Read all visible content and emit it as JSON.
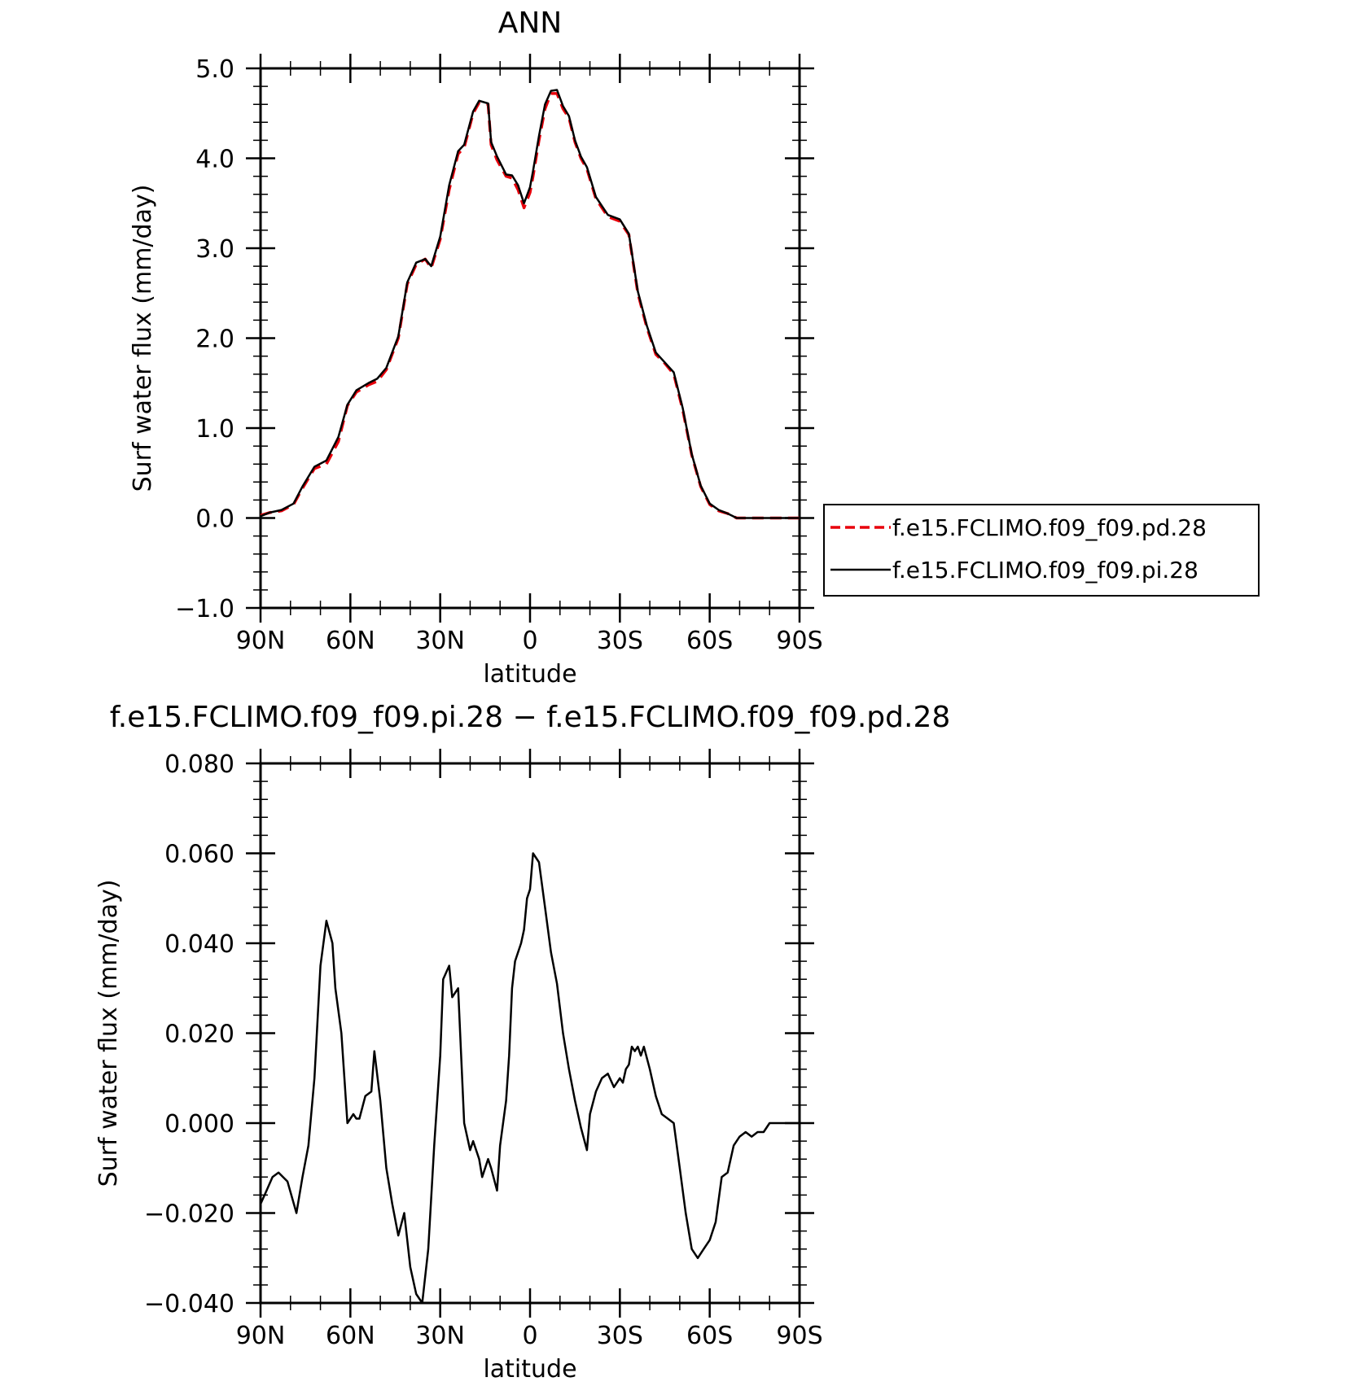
{
  "chart_data": [
    {
      "type": "line",
      "title": "ANN",
      "xlabel": "latitude",
      "ylabel": "Surf water flux (mm/day)",
      "xlim": [
        90,
        -90
      ],
      "ylim": [
        -1.0,
        5.0
      ],
      "xticks": [
        90,
        60,
        30,
        0,
        -30,
        -60,
        -90
      ],
      "xtick_labels": [
        "90N",
        "60N",
        "30N",
        "0",
        "30S",
        "60S",
        "90S"
      ],
      "yticks": [
        -1.0,
        0.0,
        1.0,
        2.0,
        3.0,
        4.0,
        5.0
      ],
      "ytick_labels": [
        "−1.0",
        "0.0",
        "1.0",
        "2.0",
        "3.0",
        "4.0",
        "5.0"
      ],
      "legend": {
        "placement": "right-outside"
      },
      "series": [
        {
          "name": "f.e15.FCLIMO.f09_f09.pd.28",
          "color": "#e8000b",
          "dash": "dashed",
          "x": [
            90,
            87,
            83,
            79,
            76,
            72,
            68,
            64,
            61,
            58,
            54,
            51,
            48,
            44,
            41,
            38,
            35,
            33,
            30,
            27,
            24,
            22,
            19,
            17,
            14,
            13,
            11,
            8,
            6,
            4,
            2,
            0,
            -1,
            -3,
            -5,
            -7,
            -9,
            -11,
            -13,
            -15,
            -17,
            -19,
            -22,
            -26,
            -30,
            -33,
            -36,
            -39,
            -42,
            -45,
            -48,
            -51,
            -54,
            -57,
            -60,
            -63,
            -66,
            -69,
            -71,
            -73,
            -76,
            -79,
            -83,
            -86,
            -90
          ],
          "values": [
            0.03,
            0.06,
            0.08,
            0.15,
            0.33,
            0.55,
            0.6,
            0.85,
            1.25,
            1.4,
            1.48,
            1.52,
            1.65,
            2.0,
            2.6,
            2.82,
            2.88,
            2.78,
            3.1,
            3.65,
            4.05,
            4.12,
            4.5,
            4.62,
            4.6,
            4.15,
            3.98,
            3.8,
            3.78,
            3.65,
            3.45,
            3.62,
            3.8,
            4.2,
            4.55,
            4.72,
            4.72,
            4.55,
            4.45,
            4.18,
            4.0,
            3.88,
            3.55,
            3.35,
            3.3,
            3.15,
            2.5,
            2.12,
            1.82,
            1.72,
            1.6,
            1.2,
            0.7,
            0.35,
            0.15,
            0.08,
            0.05,
            0.0,
            0.0,
            0.0,
            0.0,
            0.0,
            0.0,
            0.0,
            0.0
          ]
        },
        {
          "name": "f.e15.FCLIMO.f09_f09.pi.28",
          "color": "#000000",
          "dash": "solid",
          "x": [
            90,
            87,
            83,
            79,
            76,
            72,
            68,
            64,
            61,
            58,
            54,
            51,
            48,
            44,
            41,
            38,
            35,
            33,
            30,
            27,
            24,
            22,
            19,
            17,
            14,
            13,
            11,
            8,
            6,
            4,
            2,
            0,
            -1,
            -3,
            -5,
            -7,
            -9,
            -11,
            -13,
            -15,
            -17,
            -19,
            -22,
            -26,
            -30,
            -33,
            -36,
            -39,
            -42,
            -45,
            -48,
            -51,
            -54,
            -57,
            -60,
            -63,
            -66,
            -69,
            -71,
            -73,
            -76,
            -79,
            -83,
            -86,
            -90
          ],
          "values": [
            0.02,
            0.06,
            0.09,
            0.16,
            0.35,
            0.57,
            0.64,
            0.9,
            1.26,
            1.42,
            1.5,
            1.55,
            1.67,
            2.02,
            2.62,
            2.84,
            2.88,
            2.8,
            3.13,
            3.7,
            4.08,
            4.15,
            4.52,
            4.64,
            4.61,
            4.18,
            4.02,
            3.82,
            3.81,
            3.7,
            3.5,
            3.68,
            3.86,
            4.25,
            4.6,
            4.75,
            4.76,
            4.58,
            4.47,
            4.2,
            4.02,
            3.9,
            3.57,
            3.37,
            3.32,
            3.16,
            2.52,
            2.14,
            1.84,
            1.73,
            1.62,
            1.22,
            0.71,
            0.36,
            0.16,
            0.09,
            0.05,
            0.0,
            0.0,
            0.0,
            0.0,
            0.0,
            0.0,
            0.0,
            0.0
          ]
        }
      ]
    },
    {
      "type": "line",
      "title": "f.e15.FCLIMO.f09_f09.pi.28 − f.e15.FCLIMO.f09_f09.pd.28",
      "xlabel": "latitude",
      "ylabel": "Surf water flux (mm/day)",
      "xlim": [
        90,
        -90
      ],
      "ylim": [
        -0.04,
        0.08
      ],
      "xticks": [
        90,
        60,
        30,
        0,
        -30,
        -60,
        -90
      ],
      "xtick_labels": [
        "90N",
        "60N",
        "30N",
        "0",
        "30S",
        "60S",
        "90S"
      ],
      "yticks": [
        -0.04,
        -0.02,
        0.0,
        0.02,
        0.04,
        0.06,
        0.08
      ],
      "ytick_labels": [
        "−0.040",
        "−0.020",
        "0.000",
        "0.020",
        "0.040",
        "0.060",
        "0.080"
      ],
      "series": [
        {
          "color": "#000000",
          "dash": "solid",
          "x": [
            90,
            88,
            86,
            84,
            81,
            78,
            76,
            74,
            72,
            70,
            68,
            66,
            65,
            63,
            61,
            59,
            58,
            57,
            55,
            53,
            52,
            50,
            48,
            46,
            44,
            42,
            40,
            38,
            36,
            34,
            32,
            30,
            29,
            27,
            26,
            24,
            22,
            20,
            19,
            17,
            16,
            14,
            13,
            11,
            10,
            8,
            7,
            6,
            5,
            3,
            2,
            1,
            0,
            -1,
            -3,
            -5,
            -7,
            -9,
            -11,
            -13,
            -15,
            -17,
            -19,
            -20,
            -22,
            -24,
            -26,
            -28,
            -29,
            -30,
            -31,
            -32,
            -33,
            -34,
            -35,
            -36,
            -37,
            -38,
            -40,
            -42,
            -44,
            -46,
            -48,
            -50,
            -52,
            -54,
            -56,
            -58,
            -60,
            -62,
            -64,
            -66,
            -68,
            -70,
            -72,
            -74,
            -76,
            -78,
            -80,
            -84,
            -90
          ],
          "values": [
            -0.018,
            -0.015,
            -0.012,
            -0.011,
            -0.013,
            -0.02,
            -0.012,
            -0.005,
            0.01,
            0.035,
            0.045,
            0.04,
            0.03,
            0.02,
            0.0,
            0.002,
            0.001,
            0.001,
            0.006,
            0.007,
            0.016,
            0.005,
            -0.01,
            -0.018,
            -0.025,
            -0.02,
            -0.032,
            -0.038,
            -0.04,
            -0.028,
            -0.005,
            0.015,
            0.032,
            0.035,
            0.028,
            0.03,
            0.0,
            -0.006,
            -0.004,
            -0.008,
            -0.012,
            -0.008,
            -0.01,
            -0.015,
            -0.005,
            0.005,
            0.015,
            0.03,
            0.036,
            0.04,
            0.043,
            0.05,
            0.052,
            0.06,
            0.058,
            0.048,
            0.038,
            0.031,
            0.02,
            0.012,
            0.005,
            -0.001,
            -0.006,
            0.002,
            0.007,
            0.01,
            0.011,
            0.008,
            0.009,
            0.01,
            0.009,
            0.012,
            0.013,
            0.017,
            0.016,
            0.017,
            0.015,
            0.017,
            0.012,
            0.006,
            0.002,
            0.001,
            0.0,
            -0.01,
            -0.02,
            -0.028,
            -0.03,
            -0.028,
            -0.026,
            -0.022,
            -0.012,
            -0.011,
            -0.005,
            -0.003,
            -0.002,
            -0.003,
            -0.002,
            -0.002,
            0.0,
            0.0,
            0.0
          ]
        }
      ]
    }
  ]
}
